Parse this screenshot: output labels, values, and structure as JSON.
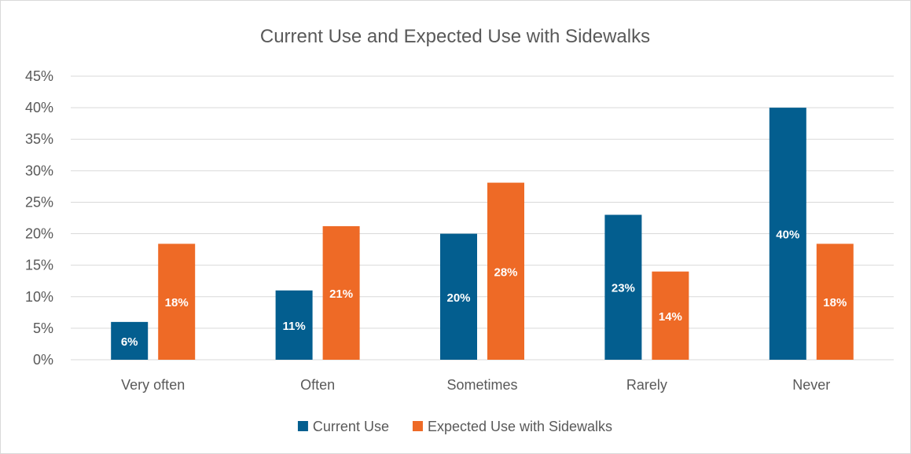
{
  "chart_data": {
    "type": "bar",
    "title": "Current Use and Expected Use with Sidewalks",
    "categories": [
      "Very often",
      "Often",
      "Sometimes",
      "Rarely",
      "Never"
    ],
    "series": [
      {
        "name": "Current Use",
        "color": "#035e8f",
        "values": [
          6,
          11,
          20,
          23,
          40
        ],
        "labels": [
          "6%",
          "11%",
          "20%",
          "23%",
          "40%"
        ]
      },
      {
        "name": "Expected Use with Sidewalks",
        "color": "#ee6a26",
        "values": [
          18.4,
          21.2,
          28.1,
          14.0,
          18.4
        ],
        "labels": [
          "18%",
          "21%",
          "28%",
          "14%",
          "18%"
        ]
      }
    ],
    "y_ticks": [
      "0%",
      "5%",
      "10%",
      "15%",
      "20%",
      "25%",
      "30%",
      "35%",
      "40%",
      "45%"
    ],
    "ylim": [
      0,
      45
    ],
    "xlabel": "",
    "ylabel": "",
    "grid": true,
    "legend_position": "bottom"
  }
}
